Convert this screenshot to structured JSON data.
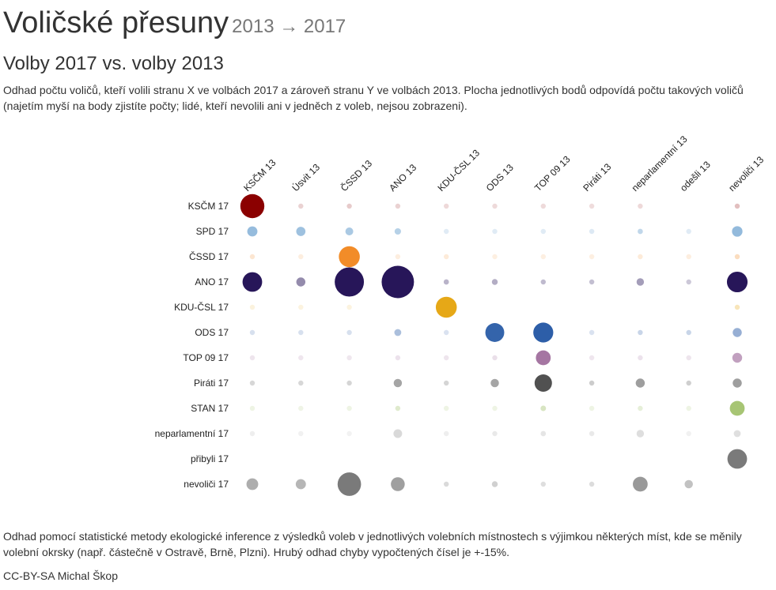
{
  "title": "Voličské přesuny",
  "title_years": "2013 → 2017",
  "subtitle": "Volby 2017 vs. volby 2013",
  "description": "Odhad počtu voličů, kteří volili stranu X ve volbách 2017 a zároveň stranu Y ve volbách 2013. Plocha jednotlivých bodů odpovídá počtu takových voličů (najetím myší na body zjistíte počty; lidé, kteří nevolili ani v jedněch z voleb, nejsou zobrazeni).",
  "footnote": "Odhad pomocí statistické metody ekologické inference z výsledků voleb v jednotlivých volebních místnostech s výjimkou některých míst, kde se měnily volební okrsky (např. částečně v Ostravě, Brně, Plzni). Hrubý odhad chyby vypočtených čísel je +-15%.",
  "credit": "CC-BY-SA Michal Škop",
  "chart_data": {
    "type": "bubble-matrix",
    "columns": [
      "KSČM 13",
      "Úsvit 13",
      "ČSSD 13",
      "ANO 13",
      "KDU-ČSL 13",
      "ODS 13",
      "TOP 09 13",
      "Piráti 13",
      "neparlamentní 13",
      "odešli 13",
      "nevoliči 13"
    ],
    "rows": [
      {
        "label": "KSČM 17",
        "color": "#8b0000",
        "values": [
          420,
          2,
          4,
          2,
          0.5,
          0.4,
          0.4,
          0.2,
          0.5,
          0,
          9
        ]
      },
      {
        "label": "SPD 17",
        "color": "#3e84c0",
        "values": [
          75,
          62,
          45,
          30,
          1,
          1,
          1,
          2,
          20,
          1,
          80
        ]
      },
      {
        "label": "ČSSD 17",
        "color": "#f28c28",
        "values": [
          5,
          0.5,
          320,
          0.5,
          2,
          0.3,
          0.3,
          0.3,
          2,
          0.5,
          15
        ]
      },
      {
        "label": "ANO 17",
        "color": "#271659",
        "values": [
          280,
          60,
          620,
          760,
          20,
          25,
          15,
          12,
          40,
          7,
          310
        ]
      },
      {
        "label": "KDU-ČSL 17",
        "color": "#e6a817",
        "values": [
          0.5,
          0.2,
          0.2,
          0,
          320,
          0,
          0,
          0,
          0,
          0,
          15
        ]
      },
      {
        "label": "ODS 17",
        "color": "#2d5ea8",
        "values": [
          3,
          3,
          3,
          35,
          2,
          260,
          290,
          2,
          10,
          10,
          60
        ]
      },
      {
        "label": "TOP 09 17",
        "color": "#8a4c86",
        "values": [
          0.5,
          0.3,
          0.2,
          1,
          0.5,
          2,
          160,
          0.3,
          1,
          0.5,
          70
        ]
      },
      {
        "label": "Piráti 17",
        "color": "#3c3c3c",
        "values": [
          4,
          4,
          5,
          50,
          5,
          50,
          220,
          10,
          60,
          8,
          60
        ]
      },
      {
        "label": "STAN 17",
        "color": "#8cb34a",
        "values": [
          0.5,
          0.3,
          0.5,
          12,
          0.5,
          0.5,
          22,
          0.5,
          5,
          0.5,
          160
        ]
      },
      {
        "label": "neparlamentní 17",
        "color": "#b0b0b0",
        "values": [
          5,
          2,
          1,
          55,
          5,
          12,
          20,
          12,
          40,
          2,
          35
        ]
      },
      {
        "label": "přibyli 17",
        "color": "#7a7a7a",
        "values": [
          0,
          0,
          0,
          0,
          0,
          0,
          0,
          0,
          0,
          0,
          280
        ]
      },
      {
        "label": "nevoliči 17",
        "color": "#7a7a7a",
        "values": [
          100,
          75,
          400,
          140,
          12,
          25,
          8,
          10,
          160,
          50,
          0
        ]
      }
    ]
  }
}
